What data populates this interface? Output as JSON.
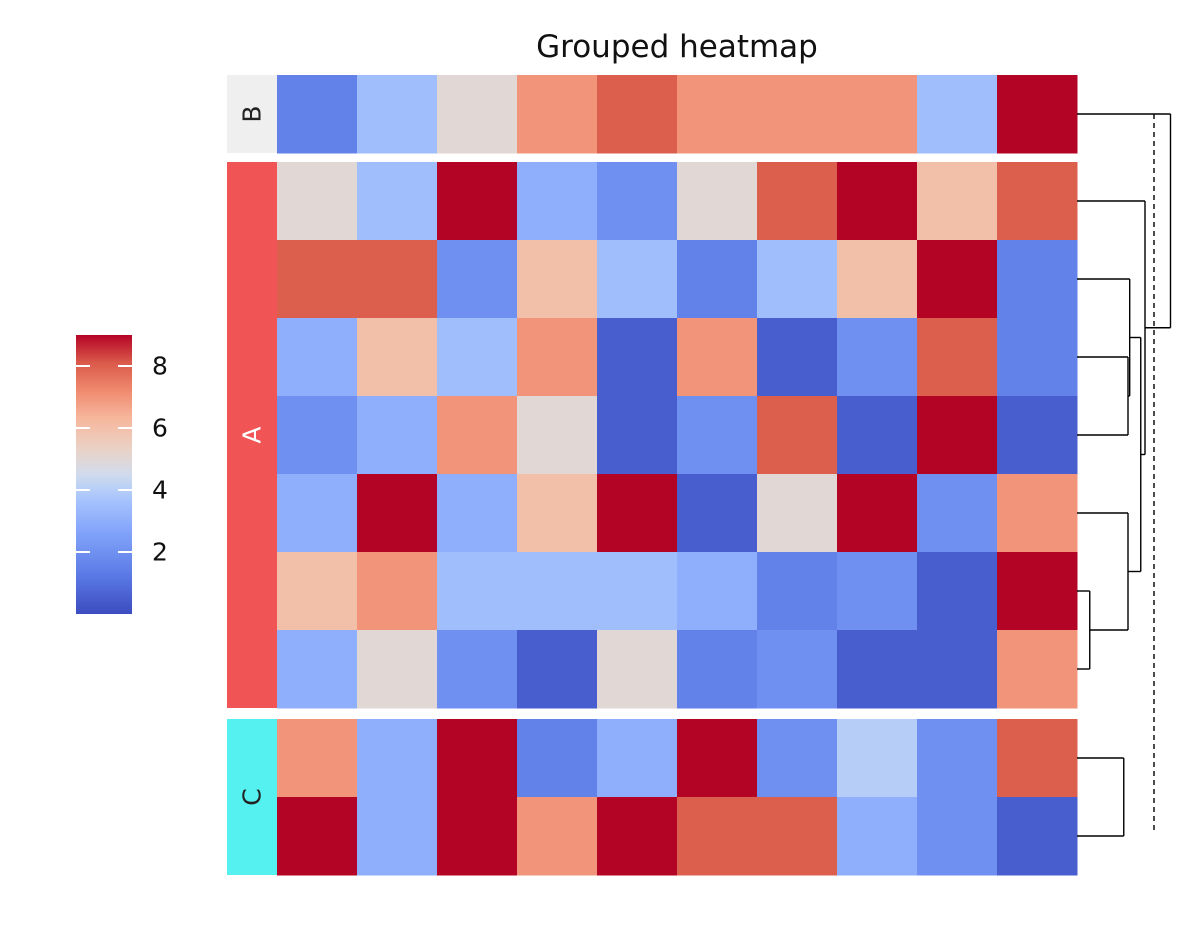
{
  "chart_data": {
    "type": "heatmap",
    "title": "Grouped heatmap",
    "colormap": "coolwarm",
    "vmin": 0,
    "vmax": 9,
    "colorbar_ticks": [
      "2",
      "4",
      "6",
      "8"
    ],
    "colorbar_tick_values": [
      2,
      4,
      6,
      8
    ],
    "legend_placement": "left",
    "groups": [
      {
        "name": "B",
        "color": "#efefef",
        "label_color": "#222222",
        "rows": [
          [
            1.5,
            3.5,
            5,
            7,
            8,
            7,
            7,
            7,
            3.5,
            9
          ]
        ]
      },
      {
        "name": "A",
        "color": "#f05454",
        "label_color": "#ffffff",
        "rows": [
          [
            5,
            3.5,
            9,
            3,
            2,
            5,
            8,
            9,
            6,
            8
          ],
          [
            8,
            8,
            2,
            6,
            3.5,
            1.5,
            3.5,
            6,
            9,
            1.5
          ],
          [
            3,
            6,
            3.5,
            7,
            0.5,
            7,
            0.5,
            2,
            8,
            1.5
          ],
          [
            2,
            3,
            7,
            5,
            0.5,
            2,
            8,
            0.5,
            9,
            0.5
          ],
          [
            3,
            9,
            3,
            6,
            9,
            0.5,
            5,
            9,
            2,
            7
          ],
          [
            6,
            7,
            3.5,
            3.5,
            3.5,
            3,
            1.5,
            2,
            0.5,
            9
          ],
          [
            3,
            5,
            2,
            0.5,
            5,
            1.5,
            2,
            0.5,
            0.5,
            7
          ]
        ]
      },
      {
        "name": "C",
        "color": "#55f0f0",
        "label_color": "#222222",
        "rows": [
          [
            7,
            3,
            9,
            1.5,
            3,
            9,
            2,
            4,
            2,
            8
          ],
          [
            9,
            3,
            9,
            7,
            9,
            8,
            8,
            3,
            2,
            0.5
          ]
        ]
      }
    ],
    "dendrogram": {
      "side": "right",
      "leaf_order": [
        "B-0",
        "A-0",
        "A-1",
        "A-2",
        "A-3",
        "A-4",
        "A-5",
        "A-6",
        "C-0",
        "C-1"
      ],
      "merges": [
        {
          "members": [
            "A-5",
            "A-6"
          ],
          "height": 0.15
        },
        {
          "members": [
            "A-4",
            "A-5",
            "A-6"
          ],
          "height": 0.6
        },
        {
          "members": [
            "A-2",
            "A-3"
          ],
          "height": 0.6
        },
        {
          "members": [
            "A-1",
            "A-2",
            "A-3"
          ],
          "height": 0.62
        },
        {
          "members": [
            "A-1",
            "A-2",
            "A-3",
            "A-4",
            "A-5",
            "A-6"
          ],
          "height": 0.75
        },
        {
          "members": [
            "A-0",
            "A-1",
            "A-2",
            "A-3",
            "A-4",
            "A-5",
            "A-6"
          ],
          "height": 0.8
        },
        {
          "members": [
            "A-0",
            "A-1",
            "A-2",
            "A-3",
            "A-4",
            "A-5",
            "A-6",
            "B-0"
          ],
          "height": 1.1
        },
        {
          "members": [
            "C-0",
            "C-1"
          ],
          "height": 0.55
        }
      ],
      "threshold_line": "dashed"
    }
  }
}
